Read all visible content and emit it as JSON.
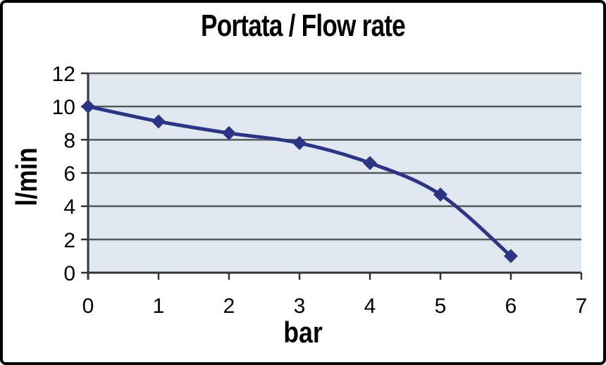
{
  "window": {
    "background": "#ffffff",
    "border_color": "#000000"
  },
  "chart_data": {
    "type": "line",
    "title": "Portata / Flow rate",
    "xlabel": "bar",
    "ylabel": "l/min",
    "x": [
      0,
      1,
      2,
      3,
      4,
      5,
      6
    ],
    "values": [
      10,
      9.1,
      8.4,
      7.8,
      6.6,
      4.7,
      1.0
    ],
    "xlim": [
      0,
      7
    ],
    "ylim": [
      0,
      12
    ],
    "x_ticks": [
      "0",
      "1",
      "2",
      "3",
      "4",
      "5",
      "6",
      "7"
    ],
    "y_ticks": [
      "0",
      "2",
      "4",
      "6",
      "8",
      "10",
      "12"
    ],
    "grid": "horizontal",
    "legend_position": "none",
    "line_smooth": true,
    "marker": "diamond",
    "colors": {
      "line": "#2b3583",
      "marker": "#2b3583",
      "plot_background": "#e1e7ef",
      "gridline": "#54595e",
      "axis": "#333333",
      "text": "#000000"
    }
  }
}
